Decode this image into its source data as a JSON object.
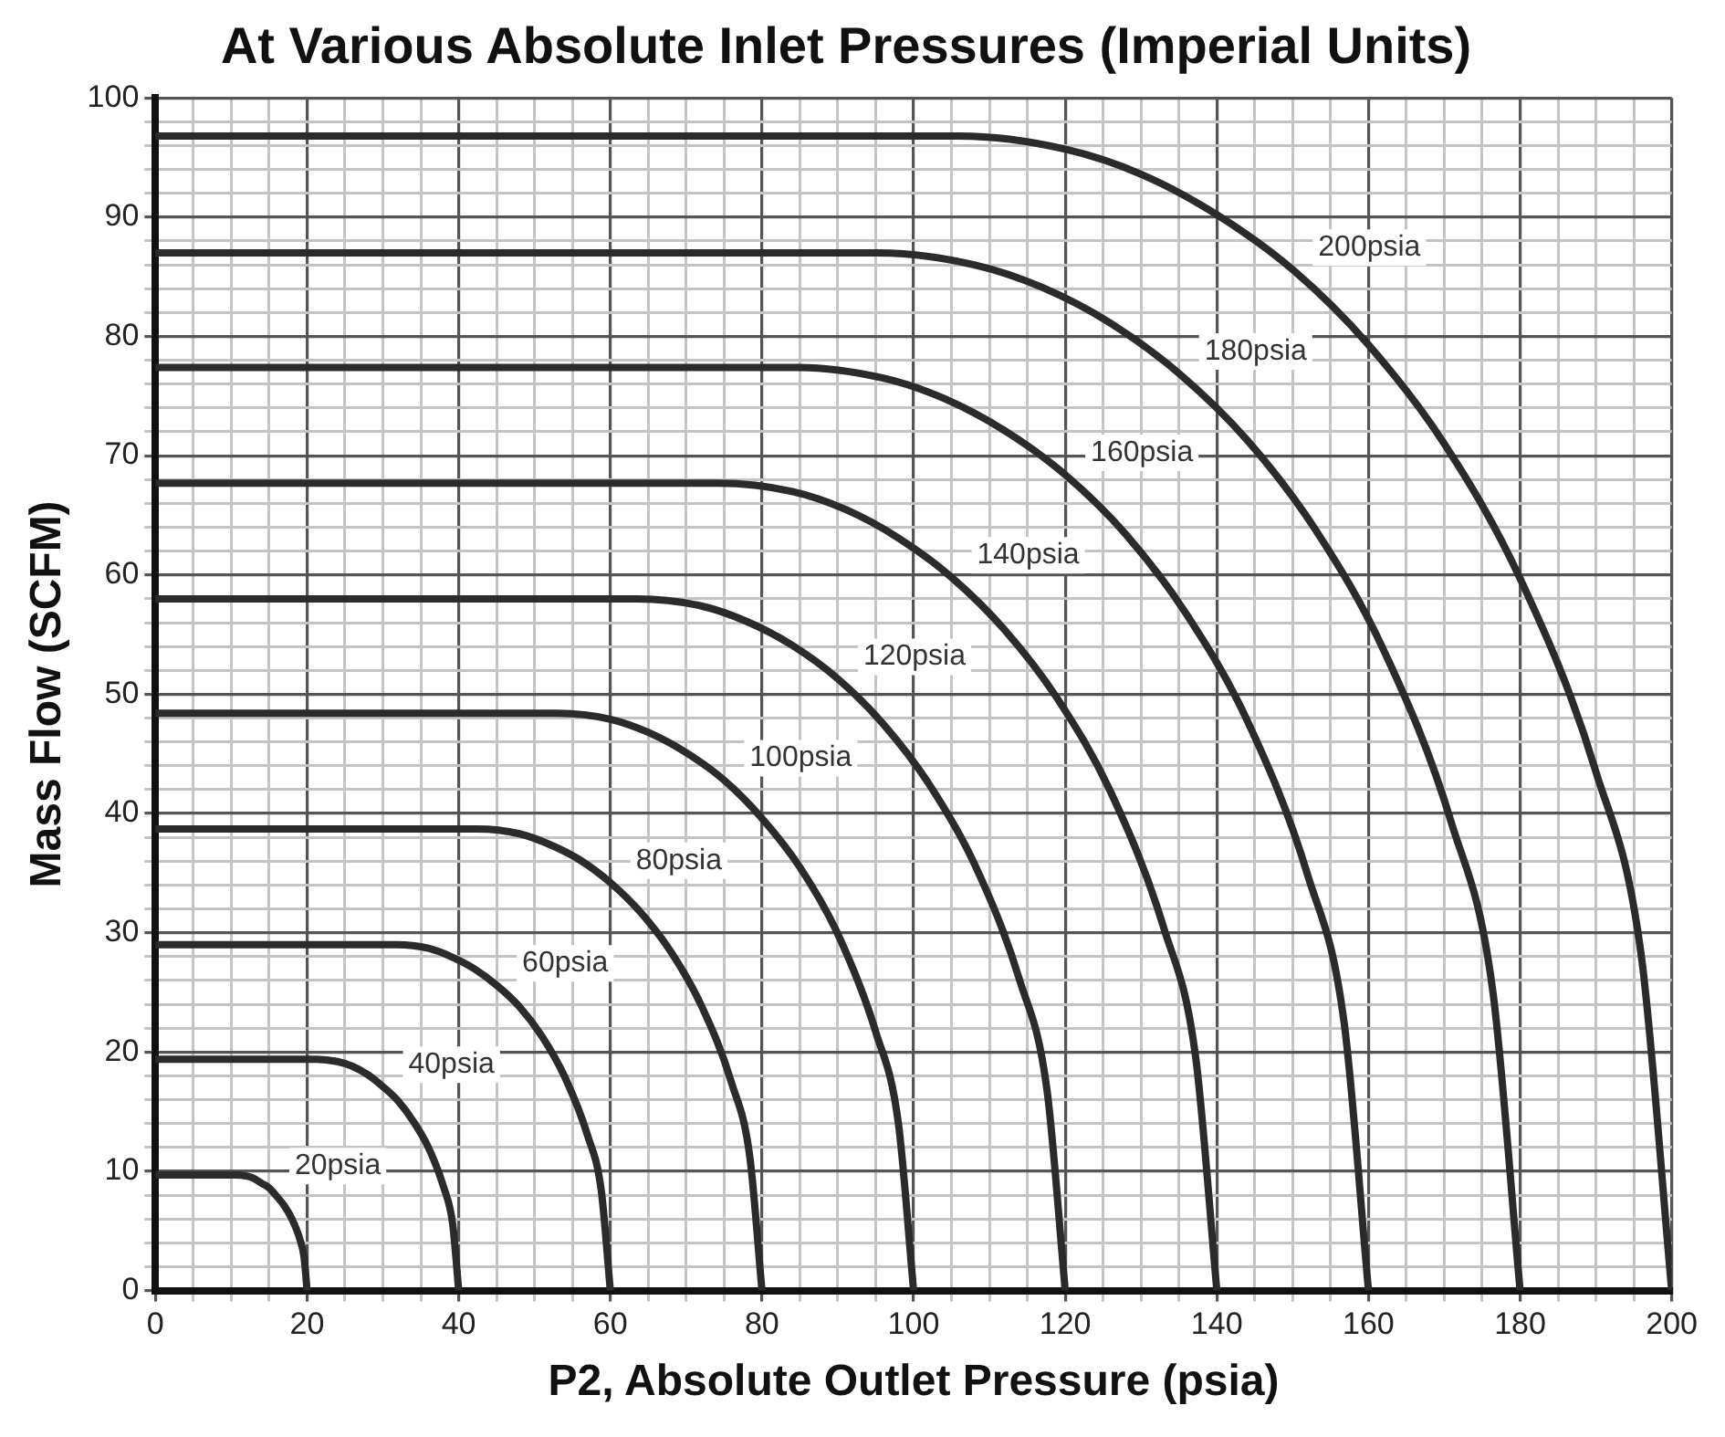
{
  "chart_data": {
    "type": "line",
    "title": "At Various Absolute Inlet Pressures (Imperial Units)",
    "xlabel": "P2, Absolute Outlet Pressure (psia)",
    "ylabel": "Mass Flow (SCFM)",
    "legend": false,
    "grid": true,
    "marker": "none",
    "line_style": "solid",
    "xlim": [
      0,
      200
    ],
    "ylim": [
      0,
      100
    ],
    "xticks": [
      0,
      {
        "value": 5,
        "label": null
      },
      {
        "value": 10,
        "label": null
      },
      {
        "value": 15,
        "label": null
      },
      20,
      {
        "value": 25,
        "label": null
      },
      {
        "value": 30,
        "label": null
      },
      {
        "value": 35,
        "label": null
      },
      40,
      {
        "value": 45,
        "label": null
      },
      {
        "value": 50,
        "label": null
      },
      {
        "value": 55,
        "label": null
      },
      60,
      {
        "value": 65,
        "label": null
      },
      {
        "value": 70,
        "label": null
      },
      {
        "value": 75,
        "label": null
      },
      80,
      {
        "value": 85,
        "label": null
      },
      {
        "value": 90,
        "label": null
      },
      {
        "value": 95,
        "label": null
      },
      100,
      {
        "value": 105,
        "label": null
      },
      {
        "value": 110,
        "label": null
      },
      {
        "value": 115,
        "label": null
      },
      120,
      {
        "value": 125,
        "label": null
      },
      {
        "value": 130,
        "label": null
      },
      {
        "value": 135,
        "label": null
      },
      140,
      {
        "value": 145,
        "label": null
      },
      {
        "value": 150,
        "label": null
      },
      {
        "value": 155,
        "label": null
      },
      160,
      {
        "value": 165,
        "label": null
      },
      {
        "value": 170,
        "label": null
      },
      {
        "value": 175,
        "label": null
      },
      180,
      {
        "value": 185,
        "label": null
      },
      {
        "value": 190,
        "label": null
      },
      {
        "value": 195,
        "label": null
      },
      200
    ],
    "yticks": [
      0,
      {
        "value": 2,
        "label": null
      },
      {
        "value": 4,
        "label": null
      },
      {
        "value": 6,
        "label": null
      },
      {
        "value": 8,
        "label": null
      },
      10,
      {
        "value": 12,
        "label": null
      },
      {
        "value": 14,
        "label": null
      },
      {
        "value": 16,
        "label": null
      },
      {
        "value": 18,
        "label": null
      },
      20,
      {
        "value": 22,
        "label": null
      },
      {
        "value": 24,
        "label": null
      },
      {
        "value": 26,
        "label": null
      },
      {
        "value": 28,
        "label": null
      },
      30,
      {
        "value": 32,
        "label": null
      },
      {
        "value": 34,
        "label": null
      },
      {
        "value": 36,
        "label": null
      },
      {
        "value": 38,
        "label": null
      },
      40,
      {
        "value": 42,
        "label": null
      },
      {
        "value": 44,
        "label": null
      },
      {
        "value": 46,
        "label": null
      },
      {
        "value": 48,
        "label": null
      },
      50,
      {
        "value": 52,
        "label": null
      },
      {
        "value": 54,
        "label": null
      },
      {
        "value": 56,
        "label": null
      },
      {
        "value": 58,
        "label": null
      },
      60,
      {
        "value": 62,
        "label": null
      },
      {
        "value": 64,
        "label": null
      },
      {
        "value": 66,
        "label": null
      },
      {
        "value": 68,
        "label": null
      },
      70,
      {
        "value": 72,
        "label": null
      },
      {
        "value": 74,
        "label": null
      },
      {
        "value": 76,
        "label": null
      },
      {
        "value": 78,
        "label": null
      },
      80,
      {
        "value": 82,
        "label": null
      },
      {
        "value": 84,
        "label": null
      },
      {
        "value": 86,
        "label": null
      },
      {
        "value": 88,
        "label": null
      },
      90,
      {
        "value": 92,
        "label": null
      },
      {
        "value": 94,
        "label": null
      },
      {
        "value": 96,
        "label": null
      },
      {
        "value": 98,
        "label": null
      },
      100
    ],
    "series": [
      {
        "name": "20psia",
        "color": "#2b2b2b",
        "x": [
          0,
          10.6,
          12,
          13,
          14,
          15,
          16,
          17,
          18,
          19,
          19.6,
          20
        ],
        "values": [
          9.7,
          9.7,
          9.6,
          9.4,
          9.0,
          8.6,
          7.9,
          7.1,
          6.0,
          4.4,
          2.8,
          0
        ]
      },
      {
        "name": "40psia",
        "color": "#2b2b2b",
        "x": [
          0,
          21.2,
          24,
          26,
          28,
          30,
          32,
          34,
          36,
          38,
          39.2,
          40
        ],
        "values": [
          19.4,
          19.4,
          19.2,
          18.8,
          18.1,
          17.1,
          15.9,
          14.2,
          12.0,
          8.7,
          5.6,
          0
        ]
      },
      {
        "name": "60psia",
        "color": "#2b2b2b",
        "x": [
          0,
          31.8,
          36,
          39,
          42,
          45,
          48,
          51,
          54,
          57,
          58.8,
          60
        ],
        "values": [
          29,
          29,
          28.7,
          28.0,
          27.0,
          25.6,
          23.8,
          21.3,
          17.9,
          13.0,
          8.4,
          0
        ]
      },
      {
        "name": "80psia",
        "color": "#2b2b2b",
        "x": [
          0,
          42.4,
          48,
          52,
          56,
          60,
          64,
          68,
          72,
          76,
          78.4,
          80
        ],
        "values": [
          38.7,
          38.7,
          38.3,
          37.4,
          36.1,
          34.2,
          31.7,
          28.4,
          23.9,
          17.4,
          11.2,
          0
        ]
      },
      {
        "name": "100psia",
        "color": "#2b2b2b",
        "x": [
          0,
          53,
          60,
          65,
          70,
          75,
          80,
          85,
          90,
          95,
          98,
          100
        ],
        "values": [
          48.4,
          48.4,
          47.9,
          46.8,
          45.1,
          42.8,
          39.6,
          35.5,
          29.9,
          21.7,
          14.0,
          0
        ]
      },
      {
        "name": "120psia",
        "color": "#2b2b2b",
        "x": [
          0,
          63.6,
          72,
          78,
          84,
          90,
          96,
          102,
          108,
          114,
          117.6,
          120
        ],
        "values": [
          58,
          58,
          57.4,
          56.1,
          54.1,
          51.3,
          47.5,
          42.5,
          35.8,
          26.0,
          16.8,
          0
        ]
      },
      {
        "name": "140psia",
        "color": "#2b2b2b",
        "x": [
          0,
          74.2,
          84,
          91,
          98,
          105,
          112,
          119,
          126,
          133,
          137.2,
          140
        ],
        "values": [
          67.7,
          67.7,
          67.0,
          65.5,
          63.1,
          59.8,
          55.4,
          49.6,
          41.8,
          30.4,
          19.6,
          0
        ]
      },
      {
        "name": "160psia",
        "color": "#2b2b2b",
        "x": [
          0,
          84.8,
          96,
          104,
          112,
          120,
          128,
          136,
          144,
          152,
          156.8,
          160
        ],
        "values": [
          77.4,
          77.4,
          76.5,
          74.8,
          72.1,
          68.4,
          63.4,
          56.7,
          47.8,
          34.8,
          22.4,
          0
        ]
      },
      {
        "name": "180psia",
        "color": "#2b2b2b",
        "x": [
          0,
          95.4,
          108,
          117,
          126,
          135,
          144,
          153,
          162,
          171,
          176.4,
          180
        ],
        "values": [
          87,
          87,
          86.0,
          84.1,
          81.1,
          76.9,
          71.3,
          63.8,
          53.7,
          39.1,
          25.1,
          0
        ]
      },
      {
        "name": "200psia",
        "color": "#2b2b2b",
        "x": [
          0,
          106,
          120,
          130,
          140,
          150,
          160,
          170,
          180,
          190,
          196,
          200
        ],
        "values": [
          96.8,
          96.8,
          95.7,
          93.6,
          90.2,
          85.6,
          79.3,
          71.0,
          59.7,
          43.5,
          28.0,
          0
        ]
      }
    ]
  }
}
